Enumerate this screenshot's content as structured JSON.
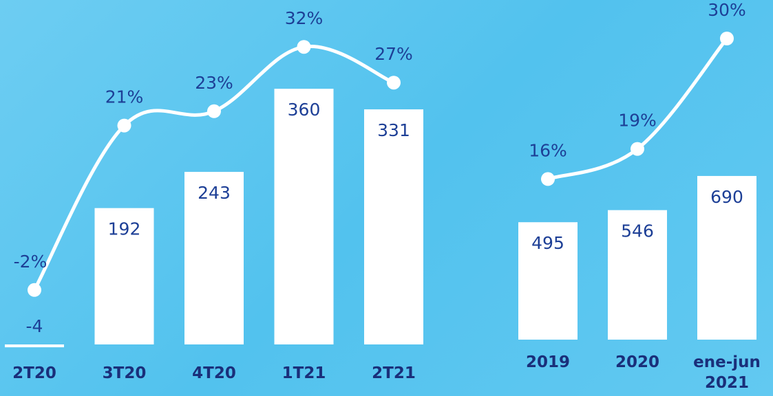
{
  "chart_data": [
    {
      "type": "combo",
      "categories": [
        "2T20",
        "3T20",
        "4T20",
        "1T21",
        "2T21"
      ],
      "series": [
        {
          "type": "bar",
          "color": "#ffffff",
          "label_color": "#1d3f96",
          "values": [
            -4,
            192,
            243,
            360,
            331
          ]
        },
        {
          "type": "line",
          "color": "#ffffff",
          "label_color": "#1d3f96",
          "values": [
            -2,
            21,
            23,
            32,
            27
          ],
          "value_labels": [
            "-2%",
            "21%",
            "23%",
            "32%",
            "27%"
          ]
        }
      ]
    },
    {
      "type": "combo",
      "categories": [
        "2019",
        "2020",
        "ene-jun 2021"
      ],
      "series": [
        {
          "type": "bar",
          "color": "#ffffff",
          "label_color": "#1d3f96",
          "values": [
            495,
            546,
            690
          ]
        },
        {
          "type": "line",
          "color": "#ffffff",
          "label_color": "#1d3f96",
          "values": [
            16,
            19,
            30
          ],
          "value_labels": [
            "16%",
            "19%",
            "30%"
          ]
        }
      ]
    }
  ]
}
